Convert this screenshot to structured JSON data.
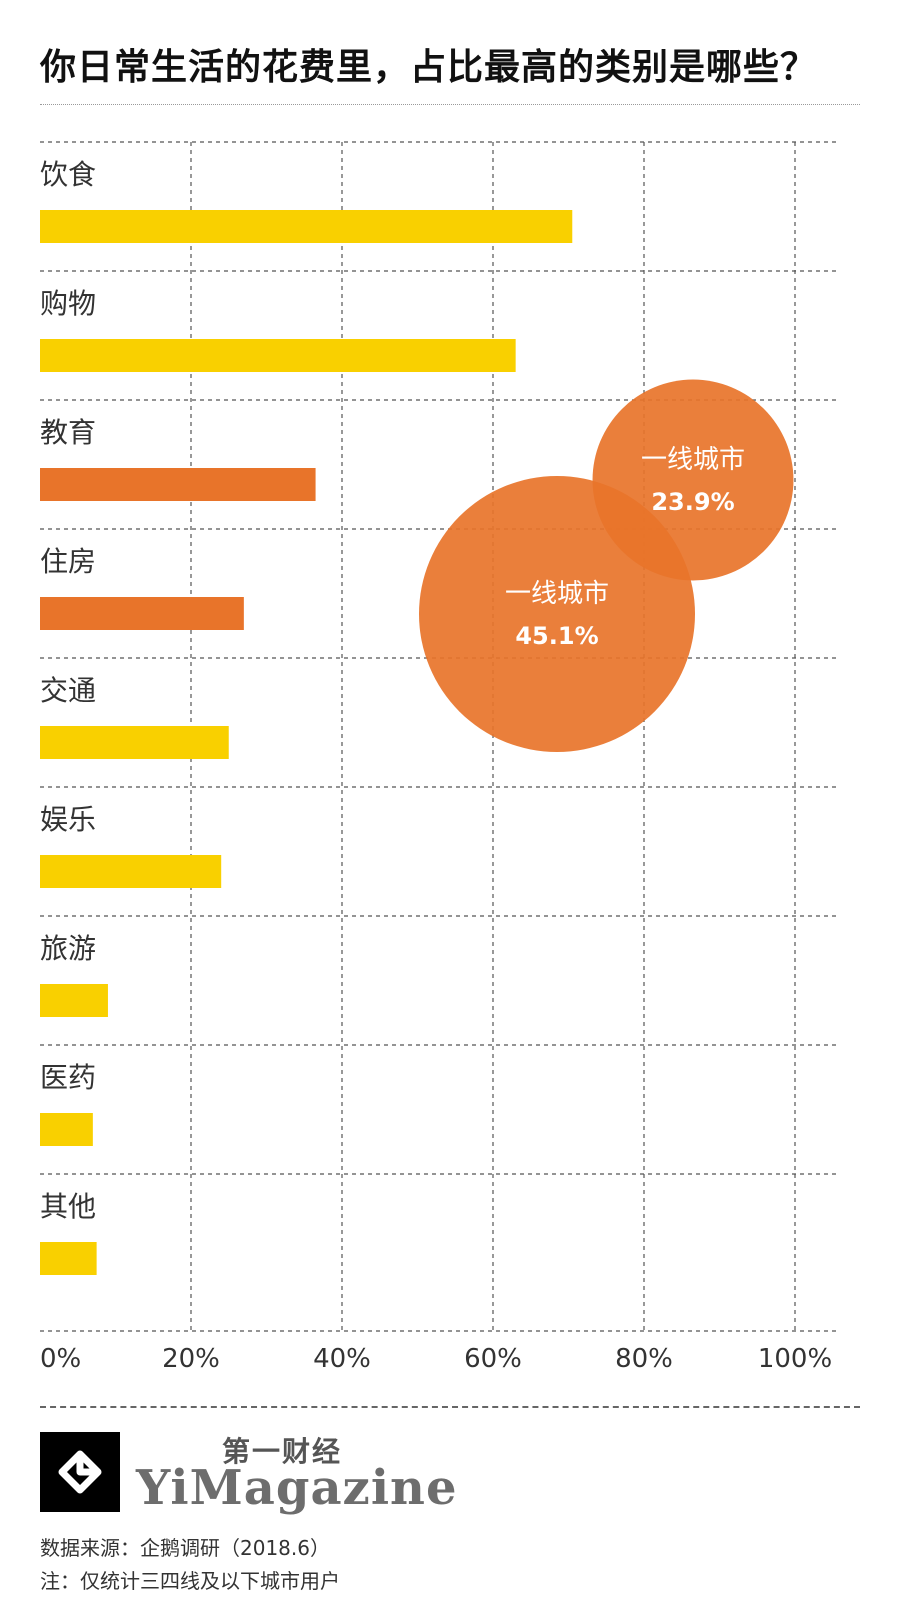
{
  "title": "你日常生活的花费里，占比最高的类别是哪些？",
  "chart_data": {
    "type": "bar",
    "orientation": "horizontal",
    "categories": [
      "饮食",
      "购物",
      "教育",
      "住房",
      "交通",
      "娱乐",
      "旅游",
      "医药",
      "其他"
    ],
    "values": [
      70.5,
      63,
      36.5,
      27,
      25,
      24,
      9,
      7,
      7.5
    ],
    "bar_colors": [
      "#F9D000",
      "#F9D000",
      "#E8742A",
      "#E8742A",
      "#F9D000",
      "#F9D000",
      "#F9D000",
      "#F9D000",
      "#F9D000"
    ],
    "xlim": [
      0,
      100
    ],
    "x_ticks": [
      "0%",
      "20%",
      "40%",
      "60%",
      "80%",
      "100%"
    ],
    "grid": true,
    "annotations": [
      {
        "label": "一线城市",
        "value": "45.1%",
        "category": "住房",
        "color": "#E8742A"
      },
      {
        "label": "一线城市",
        "value": "23.9%",
        "category": "教育",
        "color": "#E8742A"
      }
    ]
  },
  "footer": {
    "logo_cn": "第一财经",
    "logo_en": "YiMagazine",
    "source": "数据来源：企鹅调研（2018.6）",
    "note": "注：仅统计三四线及以下城市用户"
  }
}
